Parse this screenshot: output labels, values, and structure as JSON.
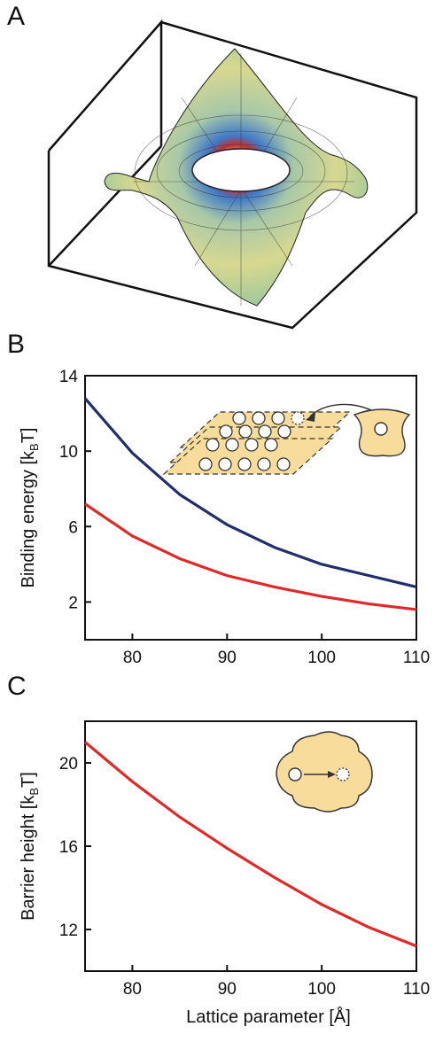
{
  "panels": [
    {
      "letter": "A"
    },
    {
      "letter": "B"
    },
    {
      "letter": "C"
    }
  ],
  "chart_data": [
    {
      "id": "A",
      "type": "surface",
      "title": "",
      "description_colors": [
        "#8fbf8f",
        "#e8dc88",
        "#d04040",
        "#3f78c8"
      ]
    },
    {
      "id": "B",
      "type": "line",
      "xlabel": "",
      "ylabel": {
        "main": "Binding energy [k",
        "sub": "B",
        "tail": "T]"
      },
      "xlim": [
        75,
        110
      ],
      "ylim": [
        0,
        14
      ],
      "xticks": [
        80,
        90,
        100,
        110
      ],
      "yticks": [
        2,
        6,
        10,
        14
      ],
      "grid": false,
      "series": [
        {
          "color": "#1f2f6b",
          "x": [
            75,
            80,
            85,
            90,
            95,
            100,
            105,
            110
          ],
          "y": [
            12.8,
            9.9,
            7.7,
            6.1,
            4.9,
            4.0,
            3.4,
            2.8
          ]
        },
        {
          "color": "#e02a2a",
          "x": [
            75,
            80,
            85,
            90,
            95,
            100,
            105,
            110
          ],
          "y": [
            7.2,
            5.5,
            4.3,
            3.4,
            2.8,
            2.3,
            1.9,
            1.6
          ]
        }
      ]
    },
    {
      "id": "C",
      "type": "line",
      "xlabel": "Lattice parameter [Å]",
      "ylabel": {
        "main": "Barrier height [k",
        "sub": "B",
        "tail": "T]"
      },
      "xlim": [
        75,
        110
      ],
      "ylim": [
        10,
        22
      ],
      "xticks": [
        80,
        90,
        100,
        110
      ],
      "yticks": [
        12,
        16,
        20
      ],
      "grid": false,
      "series": [
        {
          "color": "#e02a2a",
          "x": [
            75,
            80,
            85,
            90,
            95,
            100,
            105,
            110
          ],
          "y": [
            21.0,
            19.1,
            17.4,
            15.9,
            14.5,
            13.2,
            12.1,
            11.2
          ]
        }
      ]
    }
  ]
}
